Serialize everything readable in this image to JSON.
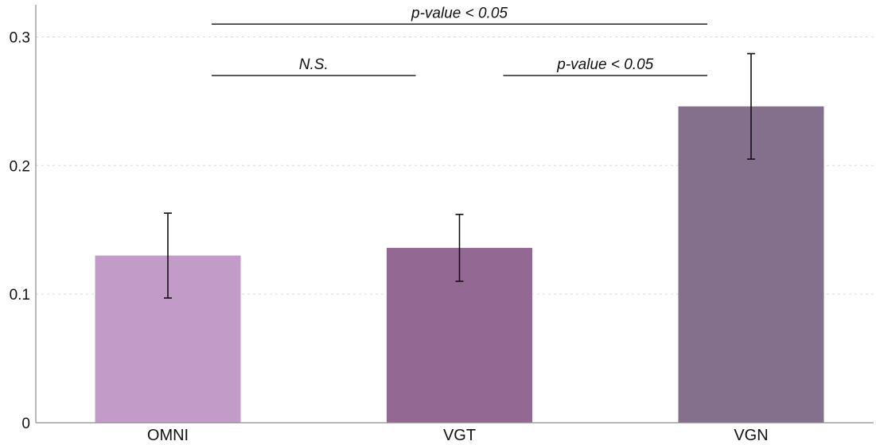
{
  "chart_data": {
    "type": "bar",
    "title": "",
    "xlabel": "",
    "ylabel": "",
    "categories": [
      "OMNI",
      "VGT",
      "VGN"
    ],
    "values": [
      0.13,
      0.136,
      0.246
    ],
    "error_low": [
      0.097,
      0.11,
      0.205
    ],
    "error_high": [
      0.163,
      0.162,
      0.287
    ],
    "colors": [
      "#c39bc8",
      "#936893",
      "#84708d"
    ],
    "ylim": [
      0,
      0.325
    ],
    "yticks": [
      0,
      0.1,
      0.2,
      0.3
    ],
    "ytick_labels": [
      "0",
      "0.1",
      "0.2",
      "0.3"
    ],
    "grid": "horizontal dotted",
    "annotations": [
      {
        "from": "OMNI",
        "to": "VGN",
        "label": "p-value < 0.05",
        "level": 0.31
      },
      {
        "from": "OMNI",
        "to": "VGT",
        "label": "N.S.",
        "level": 0.27
      },
      {
        "from": "VGT",
        "to": "VGN",
        "label": "p-value < 0.05",
        "level": 0.27
      }
    ]
  }
}
